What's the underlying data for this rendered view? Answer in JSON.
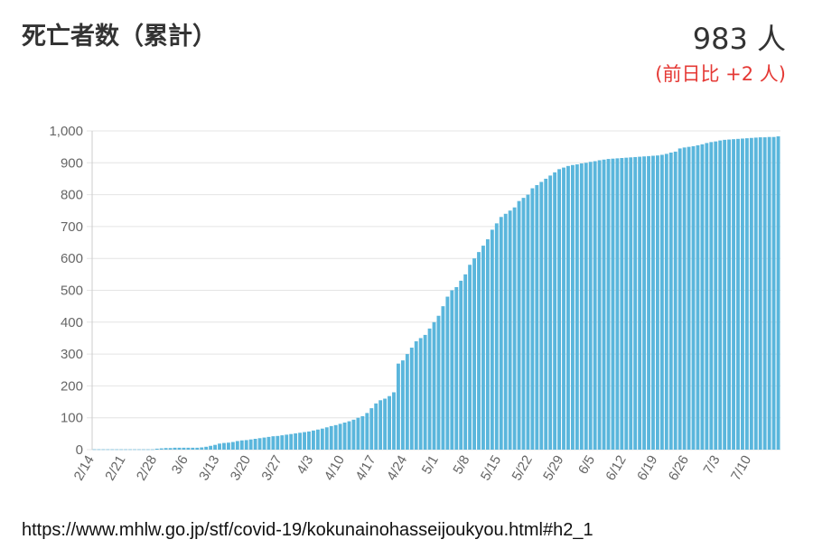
{
  "header": {
    "title": "死亡者数（累計）",
    "total": "983 人",
    "delta": "(前日比 +2 人)"
  },
  "colors": {
    "bar": "#5ab6dc",
    "grid": "#e4e4e4",
    "delta": "#e53935"
  },
  "source": "https://www.mhlw.go.jp/stf/covid-19/kokunainohasseijoukyou.html#h2_1",
  "chart_data": {
    "type": "bar",
    "ylim": [
      0,
      1000
    ],
    "yticks": [
      0,
      100,
      200,
      300,
      400,
      500,
      600,
      700,
      800,
      900,
      1000
    ],
    "ytick_labels": [
      "0",
      "100",
      "200",
      "300",
      "400",
      "500",
      "600",
      "700",
      "800",
      "900",
      "1,000"
    ],
    "xticks": [
      {
        "label": "2/14",
        "index": 0
      },
      {
        "label": "2/21",
        "index": 7
      },
      {
        "label": "2/28",
        "index": 14
      },
      {
        "label": "3/6",
        "index": 21
      },
      {
        "label": "3/13",
        "index": 28
      },
      {
        "label": "3/20",
        "index": 35
      },
      {
        "label": "3/27",
        "index": 42
      },
      {
        "label": "4/3",
        "index": 49
      },
      {
        "label": "4/10",
        "index": 56
      },
      {
        "label": "4/17",
        "index": 63
      },
      {
        "label": "4/24",
        "index": 70
      },
      {
        "label": "5/1",
        "index": 77
      },
      {
        "label": "5/8",
        "index": 84
      },
      {
        "label": "5/15",
        "index": 91
      },
      {
        "label": "5/22",
        "index": 98
      },
      {
        "label": "5/29",
        "index": 105
      },
      {
        "label": "6/5",
        "index": 112
      },
      {
        "label": "6/12",
        "index": 119
      },
      {
        "label": "6/19",
        "index": 126
      },
      {
        "label": "6/26",
        "index": 133
      },
      {
        "label": "7/3",
        "index": 140
      },
      {
        "label": "7/10",
        "index": 147
      }
    ],
    "values": [
      1,
      1,
      1,
      1,
      1,
      1,
      1,
      1,
      1,
      1,
      1,
      1,
      1,
      1,
      3,
      4,
      5,
      5,
      6,
      6,
      6,
      6,
      6,
      6,
      7,
      9,
      12,
      15,
      19,
      21,
      22,
      24,
      27,
      29,
      30,
      32,
      34,
      36,
      38,
      40,
      42,
      43,
      45,
      47,
      49,
      51,
      53,
      55,
      57,
      60,
      63,
      66,
      70,
      74,
      77,
      81,
      85,
      89,
      94,
      100,
      105,
      115,
      130,
      145,
      155,
      160,
      168,
      180,
      270,
      280,
      300,
      320,
      340,
      350,
      360,
      380,
      400,
      420,
      450,
      480,
      500,
      510,
      530,
      550,
      580,
      600,
      620,
      640,
      660,
      690,
      710,
      730,
      740,
      750,
      760,
      780,
      790,
      800,
      820,
      830,
      840,
      850,
      860,
      870,
      880,
      885,
      890,
      893,
      895,
      898,
      900,
      903,
      905,
      908,
      910,
      912,
      913,
      914,
      915,
      916,
      917,
      918,
      919,
      920,
      921,
      922,
      923,
      925,
      928,
      932,
      935,
      945,
      948,
      950,
      952,
      955,
      958,
      962,
      965,
      967,
      970,
      972,
      973,
      974,
      975,
      976,
      977,
      978,
      979,
      980,
      980,
      981,
      981,
      983
    ]
  }
}
